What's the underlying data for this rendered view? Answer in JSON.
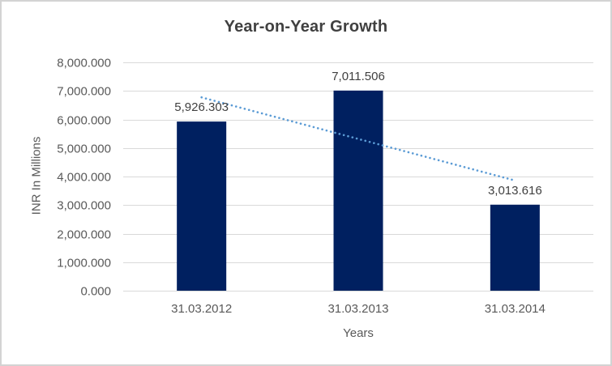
{
  "window": {
    "background": "#ffffff",
    "frame_border_color": "#d3d3d3"
  },
  "chart_data": {
    "type": "bar",
    "title": "Year-on-Year Growth",
    "xlabel": "Years",
    "ylabel": "INR In Millions",
    "categories": [
      "31.03.2012",
      "31.03.2013",
      "31.03.2014"
    ],
    "values": [
      5926.303,
      7011.506,
      3013.616
    ],
    "value_labels": [
      "5,926.303",
      "7,011.506",
      "3,013.616"
    ],
    "ylim": [
      0,
      8000
    ],
    "y_ticks": [
      {
        "value": 8000,
        "label": "8,000.000"
      },
      {
        "value": 7000,
        "label": "7,000.000"
      },
      {
        "value": 6000,
        "label": "6,000.000"
      },
      {
        "value": 5000,
        "label": "5,000.000"
      },
      {
        "value": 4000,
        "label": "4,000.000"
      },
      {
        "value": 3000,
        "label": "3,000.000"
      },
      {
        "value": 2000,
        "label": "2,000.000"
      },
      {
        "value": 1000,
        "label": "1,000.000"
      },
      {
        "value": 0,
        "label": "0.000"
      }
    ],
    "grid": "horizontal",
    "legend": "none",
    "bar_color": "#002060",
    "gridline_color": "#d9d9d9",
    "axis_label_color": "#595959",
    "data_label_color": "#404040",
    "title_color": "#404040",
    "trendline": {
      "type": "linear",
      "style": "dotted",
      "color": "#5B9BD5",
      "start_value": 6773,
      "end_value": 3861
    }
  }
}
